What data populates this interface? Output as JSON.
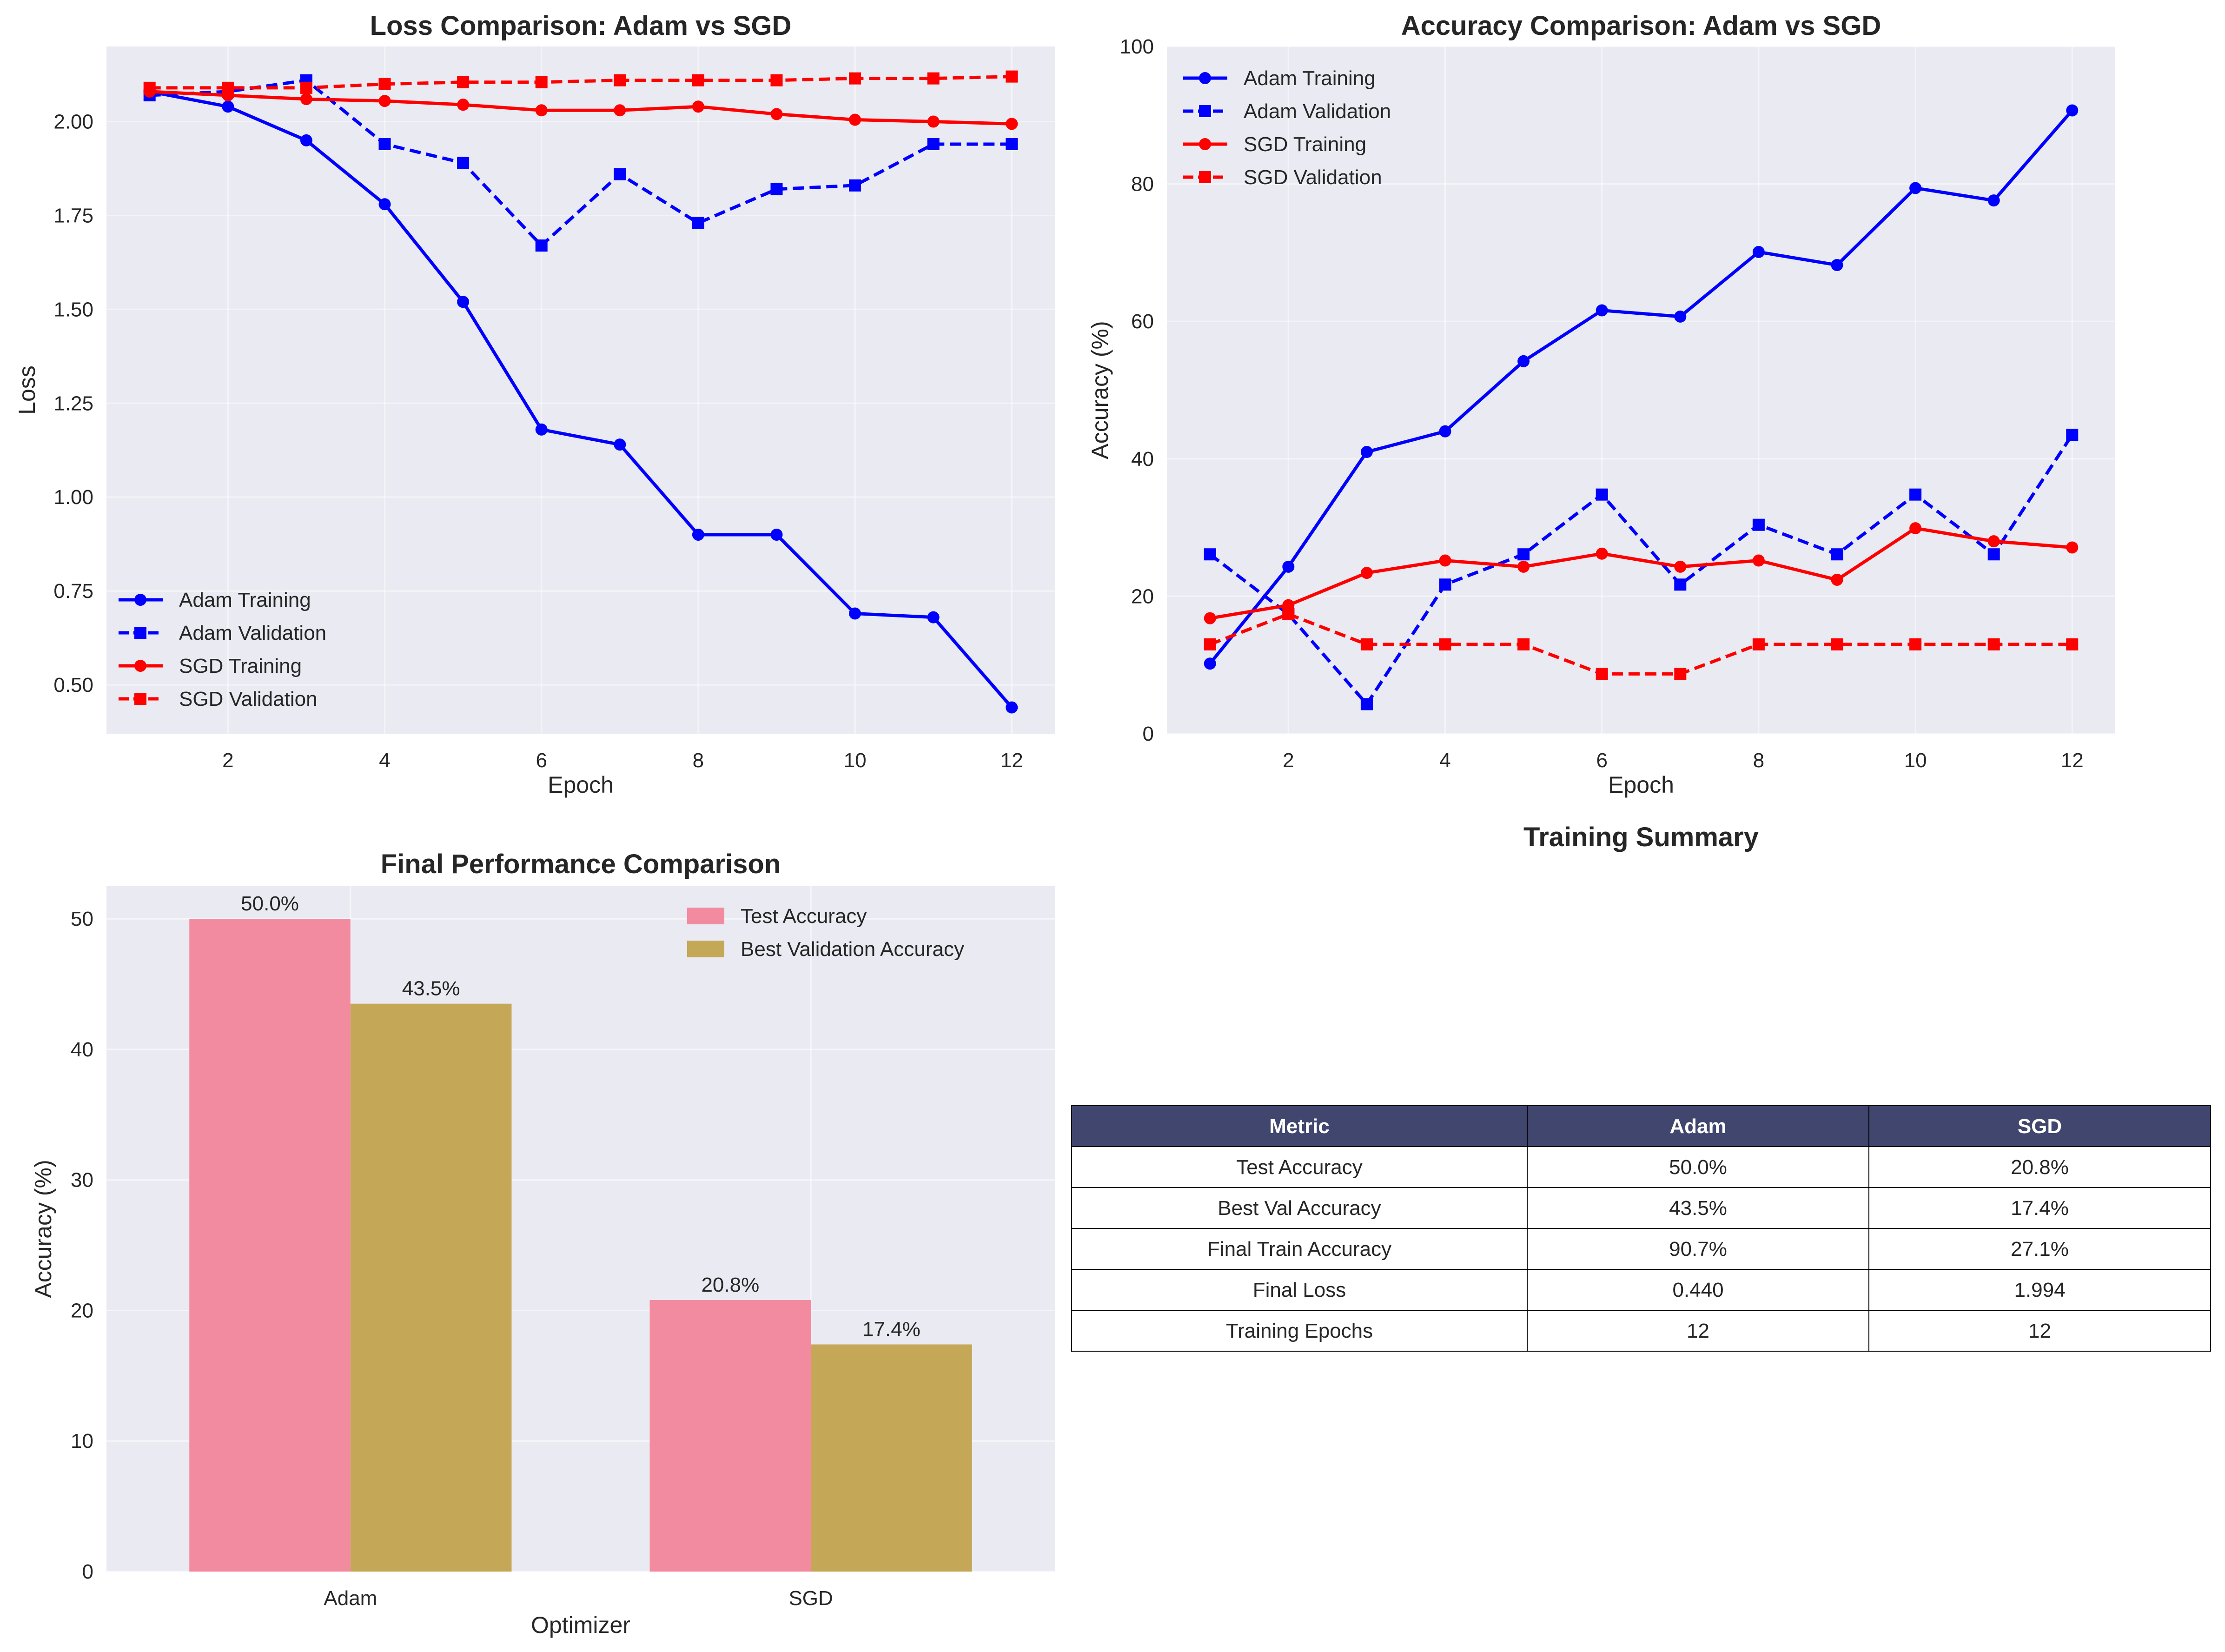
{
  "chart_data": [
    {
      "type": "line",
      "title": "Loss Comparison: Adam vs SGD",
      "xlabel": "Epoch",
      "ylabel": "Loss",
      "x": [
        1,
        2,
        3,
        4,
        5,
        6,
        7,
        8,
        9,
        10,
        11,
        12
      ],
      "xticks": [
        2,
        4,
        6,
        8,
        10,
        12
      ],
      "yticks": [
        0.5,
        0.75,
        1.0,
        1.25,
        1.5,
        1.75,
        2.0
      ],
      "xlim": [
        0.45,
        12.55
      ],
      "ylim": [
        0.37,
        2.2
      ],
      "grid": true,
      "legend_position": "lower-left",
      "series": [
        {
          "name": "Adam Training",
          "color": "#0000ff",
          "linestyle": "solid",
          "marker": "circle",
          "values": [
            2.08,
            2.04,
            1.95,
            1.78,
            1.52,
            1.18,
            1.14,
            0.9,
            0.9,
            0.69,
            0.68,
            0.44
          ]
        },
        {
          "name": "Adam Validation",
          "color": "#0000ff",
          "linestyle": "dashed",
          "marker": "square",
          "values": [
            2.07,
            2.08,
            2.11,
            1.94,
            1.89,
            1.67,
            1.86,
            1.73,
            1.82,
            1.83,
            1.94,
            1.94
          ]
        },
        {
          "name": "SGD Training",
          "color": "#ff0000",
          "linestyle": "solid",
          "marker": "circle",
          "values": [
            2.08,
            2.07,
            2.06,
            2.055,
            2.045,
            2.03,
            2.03,
            2.04,
            2.02,
            2.005,
            2.0,
            1.994
          ]
        },
        {
          "name": "SGD Validation",
          "color": "#ff0000",
          "linestyle": "dashed",
          "marker": "square",
          "values": [
            2.09,
            2.09,
            2.09,
            2.1,
            2.105,
            2.105,
            2.11,
            2.11,
            2.11,
            2.115,
            2.115,
            2.12
          ]
        }
      ]
    },
    {
      "type": "line",
      "title": "Accuracy Comparison: Adam vs SGD",
      "xlabel": "Epoch",
      "ylabel": "Accuracy (%)",
      "x": [
        1,
        2,
        3,
        4,
        5,
        6,
        7,
        8,
        9,
        10,
        11,
        12
      ],
      "xticks": [
        2,
        4,
        6,
        8,
        10,
        12
      ],
      "yticks": [
        0,
        20,
        40,
        60,
        80,
        100
      ],
      "xlim": [
        0.45,
        12.55
      ],
      "ylim": [
        0,
        100
      ],
      "grid": true,
      "legend_position": "upper-left",
      "series": [
        {
          "name": "Adam Training",
          "color": "#0000ff",
          "linestyle": "solid",
          "marker": "circle",
          "values": [
            10.2,
            24.3,
            41.0,
            44.0,
            54.2,
            61.6,
            60.7,
            70.1,
            68.2,
            79.4,
            77.6,
            90.7
          ]
        },
        {
          "name": "Adam Validation",
          "color": "#0000ff",
          "linestyle": "dashed",
          "marker": "square",
          "values": [
            26.1,
            17.4,
            4.3,
            21.7,
            26.1,
            34.8,
            21.7,
            30.4,
            26.1,
            34.8,
            26.1,
            43.5
          ]
        },
        {
          "name": "SGD Training",
          "color": "#ff0000",
          "linestyle": "solid",
          "marker": "circle",
          "values": [
            16.8,
            18.7,
            23.4,
            25.2,
            24.3,
            26.2,
            24.3,
            25.2,
            22.4,
            29.9,
            28.0,
            27.1
          ]
        },
        {
          "name": "SGD Validation",
          "color": "#ff0000",
          "linestyle": "dashed",
          "marker": "square",
          "values": [
            13.0,
            17.4,
            13.0,
            13.0,
            13.0,
            8.7,
            8.7,
            13.0,
            13.0,
            13.0,
            13.0,
            13.0
          ]
        }
      ]
    },
    {
      "type": "bar",
      "title": "Final Performance Comparison",
      "xlabel": "Optimizer",
      "ylabel": "Accuracy (%)",
      "categories": [
        "Adam",
        "SGD"
      ],
      "yticks": [
        0,
        10,
        20,
        30,
        40,
        50
      ],
      "ylim": [
        0,
        52.5
      ],
      "grid": true,
      "legend_position": "upper-right",
      "series": [
        {
          "name": "Test Accuracy",
          "color": "#f38ba0",
          "values": [
            50.0,
            20.8
          ],
          "labels": [
            "50.0%",
            "20.8%"
          ]
        },
        {
          "name": "Best Validation Accuracy",
          "color": "#c4a757",
          "values": [
            43.5,
            17.4
          ],
          "labels": [
            "43.5%",
            "17.4%"
          ]
        }
      ]
    },
    {
      "type": "table",
      "title": "Training Summary",
      "header_color": "#40466e",
      "columns": [
        "Metric",
        "Adam",
        "SGD"
      ],
      "rows": [
        [
          "Test Accuracy",
          "50.0%",
          "20.8%"
        ],
        [
          "Best Val Accuracy",
          "43.5%",
          "17.4%"
        ],
        [
          "Final Train Accuracy",
          "90.7%",
          "27.1%"
        ],
        [
          "Final Loss",
          "0.440",
          "1.994"
        ],
        [
          "Training Epochs",
          "12",
          "12"
        ]
      ]
    }
  ]
}
